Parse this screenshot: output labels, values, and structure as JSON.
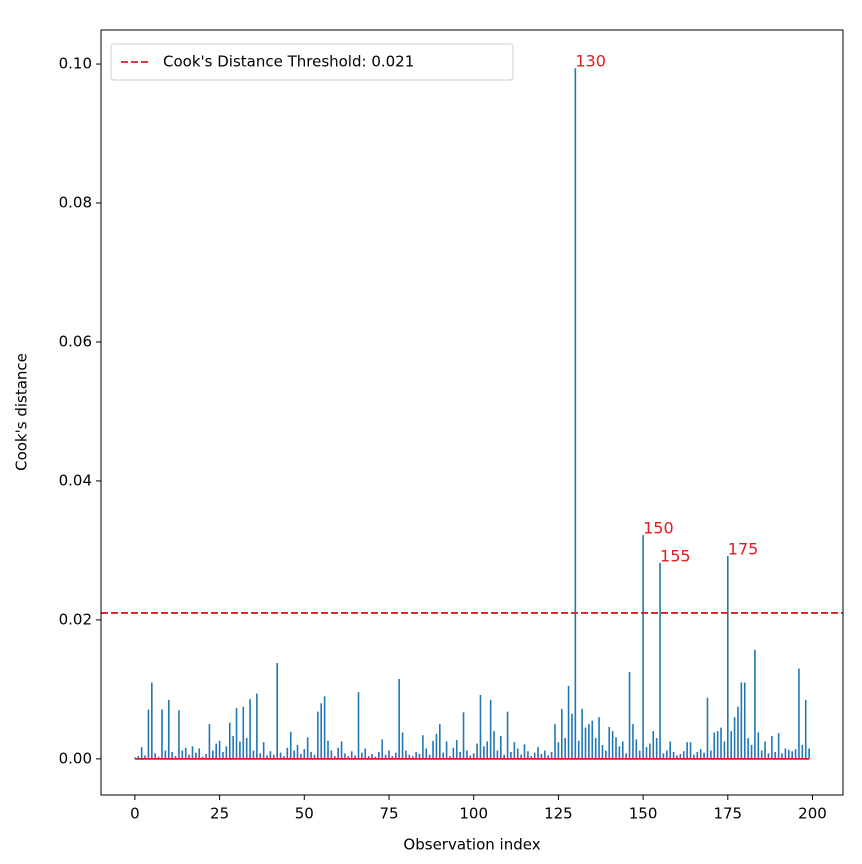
{
  "chart_data": {
    "type": "stem",
    "xlabel": "Observation index",
    "ylabel": "Cook's distance",
    "xlim": [
      -10,
      209
    ],
    "ylim": [
      -0.0052,
      0.1049
    ],
    "xticks": [
      0,
      25,
      50,
      75,
      100,
      125,
      150,
      175,
      200
    ],
    "yticks": [
      {
        "value": 0,
        "label": "0.00"
      },
      {
        "value": 0.02,
        "label": "0.02"
      },
      {
        "value": 0.04,
        "label": "0.04"
      },
      {
        "value": 0.06,
        "label": "0.06"
      },
      {
        "value": 0.08,
        "label": "0.08"
      },
      {
        "value": 0.1,
        "label": "0.10"
      }
    ],
    "color": "#1f77b4",
    "baseline_color": "#e41a1c",
    "threshold": {
      "value": 0.021,
      "label": "Cook's Distance Threshold: 0.021",
      "color": "#e41a1c"
    },
    "legend": "upper left",
    "annotations": [
      {
        "text": "130",
        "x": 130,
        "y": 0.0994
      },
      {
        "text": "150",
        "x": 150,
        "y": 0.0322
      },
      {
        "text": "155",
        "x": 155,
        "y": 0.0282
      },
      {
        "text": "175",
        "x": 175,
        "y": 0.0292
      }
    ],
    "x": [
      0,
      1,
      2,
      3,
      4,
      5,
      6,
      7,
      8,
      9,
      10,
      11,
      12,
      13,
      14,
      15,
      16,
      17,
      18,
      19,
      20,
      21,
      22,
      23,
      24,
      25,
      26,
      27,
      28,
      29,
      30,
      31,
      32,
      33,
      34,
      35,
      36,
      37,
      38,
      39,
      40,
      41,
      42,
      43,
      44,
      45,
      46,
      47,
      48,
      49,
      50,
      51,
      52,
      53,
      54,
      55,
      56,
      57,
      58,
      59,
      60,
      61,
      62,
      63,
      64,
      65,
      66,
      67,
      68,
      69,
      70,
      71,
      72,
      73,
      74,
      75,
      76,
      77,
      78,
      79,
      80,
      81,
      82,
      83,
      84,
      85,
      86,
      87,
      88,
      89,
      90,
      91,
      92,
      93,
      94,
      95,
      96,
      97,
      98,
      99,
      100,
      101,
      102,
      103,
      104,
      105,
      106,
      107,
      108,
      109,
      110,
      111,
      112,
      113,
      114,
      115,
      116,
      117,
      118,
      119,
      120,
      121,
      122,
      123,
      124,
      125,
      126,
      127,
      128,
      129,
      130,
      131,
      132,
      133,
      134,
      135,
      136,
      137,
      138,
      139,
      140,
      141,
      142,
      143,
      144,
      145,
      146,
      147,
      148,
      149,
      150,
      151,
      152,
      153,
      154,
      155,
      156,
      157,
      158,
      159,
      160,
      161,
      162,
      163,
      164,
      165,
      166,
      167,
      168,
      169,
      170,
      171,
      172,
      173,
      174,
      175,
      176,
      177,
      178,
      179,
      180,
      181,
      182,
      183,
      184,
      185,
      186,
      187,
      188,
      189,
      190,
      191,
      192,
      193,
      194,
      195,
      196,
      197,
      198,
      199
    ],
    "values": [
      0.0002,
      0.0004,
      0.0017,
      0.0005,
      0.0071,
      0.011,
      0.0008,
      0.0003,
      0.0071,
      0.0012,
      0.0085,
      0.001,
      0.0004,
      0.007,
      0.0012,
      0.0016,
      0.0006,
      0.0018,
      0.0009,
      0.0015,
      0.0003,
      0.0007,
      0.005,
      0.0012,
      0.0022,
      0.0026,
      0.001,
      0.0018,
      0.0052,
      0.0033,
      0.0073,
      0.0025,
      0.0075,
      0.003,
      0.0086,
      0.0012,
      0.0094,
      0.0008,
      0.0024,
      0.0005,
      0.0011,
      0.0006,
      0.0138,
      0.0009,
      0.0004,
      0.0016,
      0.0039,
      0.0012,
      0.002,
      0.0007,
      0.0014,
      0.0031,
      0.001,
      0.0006,
      0.0068,
      0.008,
      0.009,
      0.0026,
      0.0012,
      0.0004,
      0.0016,
      0.0025,
      0.0008,
      0.0004,
      0.0011,
      0.0005,
      0.0096,
      0.0009,
      0.0015,
      0.0004,
      0.0007,
      0.0003,
      0.001,
      0.0028,
      0.0006,
      0.0012,
      0.0004,
      0.0009,
      0.0115,
      0.0038,
      0.0012,
      0.0006,
      0.0004,
      0.001,
      0.0007,
      0.0034,
      0.0015,
      0.0006,
      0.0026,
      0.0036,
      0.005,
      0.0009,
      0.0025,
      0.0004,
      0.0016,
      0.0027,
      0.001,
      0.0067,
      0.0012,
      0.0005,
      0.0008,
      0.0022,
      0.0092,
      0.0018,
      0.0025,
      0.0085,
      0.004,
      0.0012,
      0.0033,
      0.0006,
      0.0068,
      0.001,
      0.0024,
      0.0015,
      0.0006,
      0.0021,
      0.0011,
      0.0004,
      0.0009,
      0.0017,
      0.0007,
      0.0012,
      0.0005,
      0.001,
      0.005,
      0.0024,
      0.0072,
      0.003,
      0.0105,
      0.0065,
      0.0994,
      0.0026,
      0.0072,
      0.0045,
      0.005,
      0.0055,
      0.003,
      0.006,
      0.002,
      0.0012,
      0.0046,
      0.004,
      0.0031,
      0.0018,
      0.0025,
      0.0008,
      0.0125,
      0.005,
      0.0028,
      0.0012,
      0.0322,
      0.0017,
      0.0022,
      0.004,
      0.003,
      0.0282,
      0.0008,
      0.0012,
      0.0025,
      0.001,
      0.0005,
      0.0007,
      0.0011,
      0.0024,
      0.0024,
      0.0006,
      0.001,
      0.0014,
      0.0009,
      0.0088,
      0.0012,
      0.0038,
      0.004,
      0.0045,
      0.0025,
      0.0292,
      0.004,
      0.006,
      0.0075,
      0.011,
      0.011,
      0.003,
      0.002,
      0.0157,
      0.0038,
      0.0012,
      0.0025,
      0.0008,
      0.0033,
      0.001,
      0.0037,
      0.0008,
      0.0015,
      0.0013,
      0.0011,
      0.0014,
      0.013,
      0.002,
      0.0085,
      0.0015
    ]
  }
}
